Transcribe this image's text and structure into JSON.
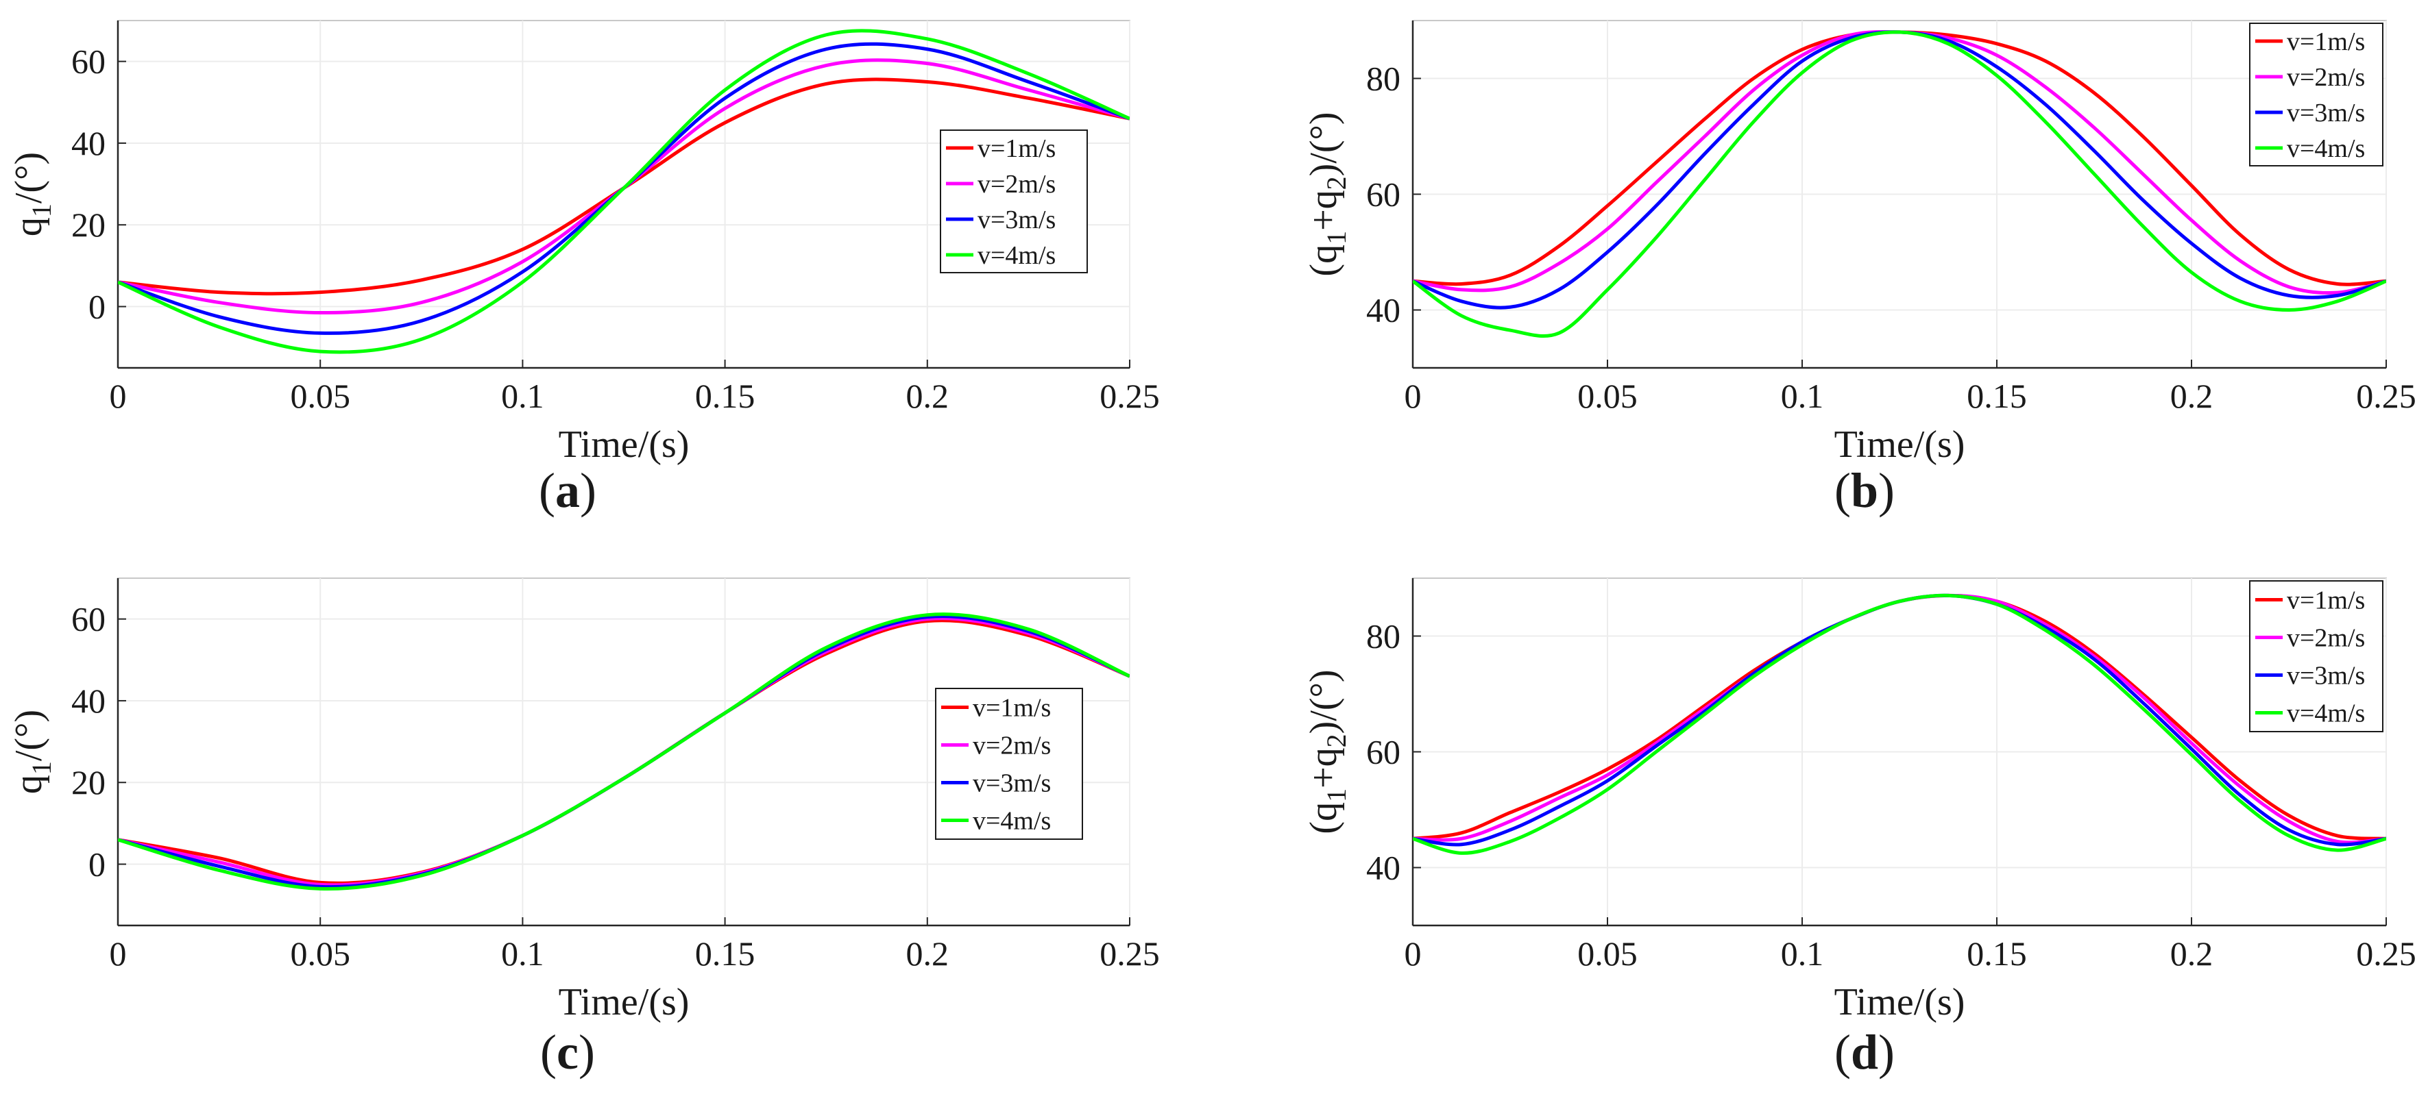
{
  "figure": {
    "panels": [
      "a",
      "b",
      "c",
      "d"
    ]
  },
  "chart_data": [
    {
      "id": "a",
      "panel_label": "a",
      "type": "line",
      "xlabel": "Time/(s)",
      "ylabel_main": "q",
      "ylabel_sub": "1",
      "ylabel_tail": "/(°)",
      "xlim": [
        0,
        0.25
      ],
      "ylim": [
        -15,
        70
      ],
      "xticks": [
        0,
        0.05,
        0.1,
        0.15,
        0.2,
        0.25
      ],
      "xtick_labels": [
        "0",
        "0.05",
        "0.1",
        "0.15",
        "0.2",
        "0.25"
      ],
      "yticks": [
        0,
        20,
        40,
        60
      ],
      "ytick_labels": [
        "0",
        "20",
        "40",
        "60"
      ],
      "grid": true,
      "legend_position": "right-middle",
      "x": [
        0,
        0.025,
        0.05,
        0.075,
        0.1,
        0.125,
        0.15,
        0.175,
        0.2,
        0.225,
        0.25
      ],
      "series": [
        {
          "name": "v=1m/s",
          "color": "#ff0000",
          "values": [
            6,
            3.5,
            3.5,
            6.5,
            14,
            29,
            45,
            54.5,
            55,
            51,
            46
          ]
        },
        {
          "name": "v=2m/s",
          "color": "#ff00ff",
          "values": [
            6,
            1,
            -1.5,
            1,
            11,
            29,
            48.5,
            59,
            59.5,
            53,
            46
          ]
        },
        {
          "name": "v=3m/s",
          "color": "#0000ff",
          "values": [
            6,
            -2.5,
            -6.5,
            -3.5,
            8.5,
            29,
            51,
            63,
            63,
            55,
            46
          ]
        },
        {
          "name": "v=4m/s",
          "color": "#00ff00",
          "values": [
            6,
            -5,
            -11,
            -8,
            6,
            29,
            53,
            66.5,
            65.5,
            57,
            46
          ]
        }
      ]
    },
    {
      "id": "b",
      "panel_label": "b",
      "type": "line",
      "xlabel": "Time/(s)",
      "ylabel_pre": "(q",
      "ylabel_sub1": "1",
      "ylabel_mid": "+q",
      "ylabel_sub2": "2",
      "ylabel_tail": ")/(°)",
      "xlim": [
        0,
        0.25
      ],
      "ylim": [
        30,
        90
      ],
      "xticks": [
        0,
        0.05,
        0.1,
        0.15,
        0.2,
        0.25
      ],
      "xtick_labels": [
        "0",
        "0.05",
        "0.1",
        "0.15",
        "0.2",
        "0.25"
      ],
      "yticks": [
        40,
        60,
        80
      ],
      "ytick_labels": [
        "40",
        "60",
        "80"
      ],
      "grid": true,
      "legend_position": "top-right",
      "x": [
        0,
        0.0125,
        0.025,
        0.0375,
        0.05,
        0.0625,
        0.075,
        0.0875,
        0.1,
        0.1125,
        0.125,
        0.1375,
        0.15,
        0.1625,
        0.175,
        0.1875,
        0.2,
        0.2125,
        0.225,
        0.2375,
        0.25
      ],
      "series": [
        {
          "name": "v=1m/s",
          "color": "#ff0000",
          "values": [
            45,
            44.5,
            46,
            51,
            58,
            65.5,
            73,
            80,
            85,
            87.5,
            88,
            87.5,
            86,
            83,
            77.5,
            70,
            61.5,
            53,
            47,
            44.5,
            45
          ]
        },
        {
          "name": "v=2m/s",
          "color": "#ff00ff",
          "values": [
            45,
            43.5,
            44,
            48,
            54,
            62,
            70,
            78,
            84,
            87.5,
            88,
            87,
            84,
            78.5,
            71.5,
            63.5,
            55.5,
            48.5,
            44,
            43,
            45
          ]
        },
        {
          "name": "v=3m/s",
          "color": "#0000ff",
          "values": [
            45,
            41.5,
            40.5,
            43.5,
            50,
            58,
            67,
            75.5,
            83,
            87,
            88,
            86.5,
            82,
            75.5,
            67.5,
            59,
            51.5,
            45.5,
            42.5,
            42.5,
            45
          ]
        },
        {
          "name": "v=4m/s",
          "color": "#00ff00",
          "values": [
            45,
            39,
            36.5,
            36,
            43.5,
            52.5,
            62.5,
            72.5,
            81,
            86.5,
            88,
            86,
            80.5,
            72.5,
            63.5,
            54.5,
            46.5,
            41.5,
            40,
            41.5,
            45
          ]
        }
      ]
    },
    {
      "id": "c",
      "panel_label": "c",
      "type": "line",
      "xlabel": "Time/(s)",
      "ylabel_main": "q",
      "ylabel_sub": "1",
      "ylabel_tail": "/(°)",
      "xlim": [
        0,
        0.25
      ],
      "ylim": [
        -15,
        70
      ],
      "xticks": [
        0,
        0.05,
        0.1,
        0.15,
        0.2,
        0.25
      ],
      "xtick_labels": [
        "0",
        "0.05",
        "0.1",
        "0.15",
        "0.2",
        "0.25"
      ],
      "yticks": [
        0,
        20,
        40,
        60
      ],
      "ytick_labels": [
        "0",
        "20",
        "40",
        "60"
      ],
      "grid": true,
      "legend_position": "right-middle",
      "x": [
        0,
        0.025,
        0.05,
        0.075,
        0.1,
        0.125,
        0.15,
        0.175,
        0.2,
        0.225,
        0.25
      ],
      "series": [
        {
          "name": "v=1m/s",
          "color": "#ff0000",
          "values": [
            6,
            1.5,
            -4.5,
            -2,
            7,
            21,
            37,
            51.5,
            59.5,
            56,
            46
          ]
        },
        {
          "name": "v=2m/s",
          "color": "#ff00ff",
          "values": [
            6,
            0.5,
            -5,
            -2.2,
            7,
            21,
            37,
            52,
            60,
            56.5,
            46
          ]
        },
        {
          "name": "v=3m/s",
          "color": "#0000ff",
          "values": [
            6,
            -0.5,
            -5.5,
            -2.5,
            7,
            21,
            37,
            52.5,
            60.5,
            57,
            46
          ]
        },
        {
          "name": "v=4m/s",
          "color": "#00ff00",
          "values": [
            6,
            -1.5,
            -6,
            -2.8,
            7,
            21,
            37,
            53,
            61,
            57.5,
            46
          ]
        }
      ]
    },
    {
      "id": "d",
      "panel_label": "d",
      "type": "line",
      "xlabel": "Time/(s)",
      "ylabel_pre": "(q",
      "ylabel_sub1": "1",
      "ylabel_mid": "+q",
      "ylabel_sub2": "2",
      "ylabel_tail": ")/(°)",
      "xlim": [
        0,
        0.25
      ],
      "ylim": [
        30,
        90
      ],
      "xticks": [
        0,
        0.05,
        0.1,
        0.15,
        0.2,
        0.25
      ],
      "xtick_labels": [
        "0",
        "0.05",
        "0.1",
        "0.15",
        "0.2",
        "0.25"
      ],
      "yticks": [
        40,
        60,
        80
      ],
      "ytick_labels": [
        "40",
        "60",
        "80"
      ],
      "grid": true,
      "legend_position": "top-right",
      "x": [
        0,
        0.0125,
        0.025,
        0.0375,
        0.05,
        0.0625,
        0.075,
        0.0875,
        0.1,
        0.1125,
        0.125,
        0.1375,
        0.15,
        0.1625,
        0.175,
        0.1875,
        0.2,
        0.2125,
        0.225,
        0.2375,
        0.25
      ],
      "series": [
        {
          "name": "v=1m/s",
          "color": "#ff0000",
          "values": [
            45,
            46,
            49.5,
            53,
            57,
            62,
            68,
            74,
            79,
            83,
            86,
            87,
            86,
            82.5,
            77,
            70,
            62.5,
            55,
            49,
            45.5,
            45
          ]
        },
        {
          "name": "v=2m/s",
          "color": "#ff00ff",
          "values": [
            45,
            45,
            48,
            52,
            56,
            61.5,
            67.5,
            73.5,
            79,
            83,
            86,
            87,
            86,
            82,
            76.5,
            69.5,
            61.5,
            54,
            48,
            44.5,
            45
          ]
        },
        {
          "name": "v=3m/s",
          "color": "#0000ff",
          "values": [
            45,
            44,
            46.5,
            50.5,
            55,
            61,
            67,
            73.5,
            79,
            83,
            86,
            87,
            85.5,
            81.5,
            76,
            68.5,
            60.5,
            52.5,
            46.5,
            44,
            45
          ]
        },
        {
          "name": "v=4m/s",
          "color": "#00ff00",
          "values": [
            45,
            42.5,
            44.5,
            48.5,
            53.5,
            60,
            66.5,
            73,
            78.5,
            83,
            86,
            87,
            85.5,
            81,
            75,
            67.5,
            59.5,
            51.5,
            45.5,
            43,
            45
          ]
        }
      ]
    }
  ]
}
